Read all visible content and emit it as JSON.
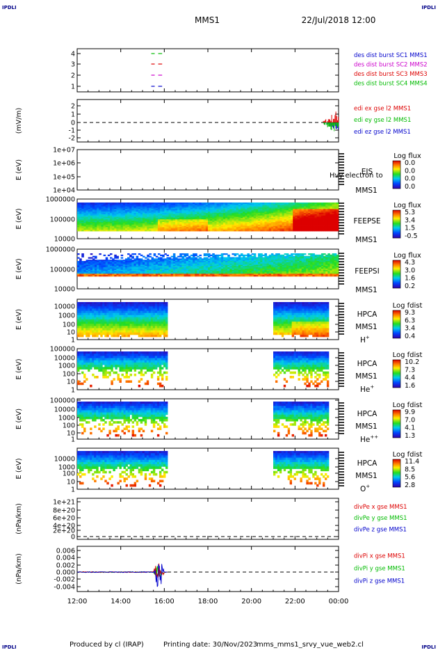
{
  "header": {
    "corner_tl": "IPDLI",
    "corner_tr": "IPDLI",
    "corner_bl": "IPDLI",
    "corner_br": "IPDLI",
    "mission": "MMS1",
    "datetime": "22/Jul/2018 12:00"
  },
  "footer": {
    "produced_by": "Produced by cl (IRAP)",
    "printing_date": "Printing date: 30/Nov/2023",
    "script_name": "mms_mms1_srvy_vue_web2.cl"
  },
  "colors": {
    "red": "#dd0000",
    "green": "#00bb00",
    "blue": "#0000cc",
    "magenta": "#cc00cc",
    "black": "#000000"
  },
  "chart_data": {
    "type": "heatmap",
    "x_axis": {
      "ticks": [
        "12:00",
        "14:00",
        "16:00",
        "18:00",
        "20:00",
        "22:00",
        "00:00"
      ],
      "range_hours": [
        12,
        24
      ]
    },
    "panels": [
      {
        "id": "burst",
        "type": "line",
        "ylabel": "",
        "ticks": [
          "4",
          "3",
          "2",
          "1"
        ],
        "legend": [
          {
            "label": "des dist burst SC1 MMS1",
            "color": "#0000cc"
          },
          {
            "label": "des dist burst SC2 MMS2",
            "color": "#cc00cc"
          },
          {
            "label": "des dist burst SC3 MMS3",
            "color": "#dd0000"
          },
          {
            "label": "des dist burst SC4 MMS4",
            "color": "#00bb00"
          }
        ],
        "segments": [
          {
            "level": 4,
            "color": "#00bb00",
            "t": [
              15.4,
              15.9
            ]
          },
          {
            "level": 3,
            "color": "#dd0000",
            "t": [
              15.4,
              15.9
            ]
          },
          {
            "level": 2,
            "color": "#cc00cc",
            "t": [
              15.4,
              15.9
            ]
          },
          {
            "level": 1,
            "color": "#0000cc",
            "t": [
              15.4,
              15.9
            ]
          }
        ]
      },
      {
        "id": "edi",
        "type": "line",
        "ylabel": "(mV/m)",
        "ticks": [
          "2",
          "1",
          "0",
          "-1",
          "-2"
        ],
        "legend": [
          {
            "label": "edi ex gse l2 MMS1",
            "color": "#dd0000"
          },
          {
            "label": "edi ey gse l2 MMS1",
            "color": "#00bb00"
          },
          {
            "label": "edi ez gse l2 MMS1",
            "color": "#0000cc"
          }
        ],
        "activity_start_hours": 23.3
      },
      {
        "id": "eis",
        "type": "heatmap",
        "ylabel": "E (eV)",
        "ticks": [
          "1e+07",
          "1e+06",
          "1e+05",
          "1e+04"
        ],
        "instrument": "EIS",
        "species": "Hvy electron to",
        "mission": "MMS1",
        "colorbar_title": "Log flux",
        "colorbar_ticks": [
          "0.0",
          "0.0",
          "0.0",
          "0.0"
        ]
      },
      {
        "id": "feepse",
        "type": "heatmap",
        "ylabel": "E (eV)",
        "ticks": [
          "1000000",
          "100000",
          "10000"
        ],
        "instrument": "FEEPSE",
        "mission": "MMS1",
        "colorbar_title": "Log flux",
        "colorbar_ticks": [
          "5.3",
          "3.4",
          "1.5",
          "-0.5"
        ]
      },
      {
        "id": "feepsi",
        "type": "heatmap",
        "ylabel": "E (eV)",
        "ticks": [
          "1000000",
          "100000",
          "10000"
        ],
        "instrument": "FEEPSI",
        "mission": "MMS1",
        "colorbar_title": "Log flux",
        "colorbar_ticks": [
          "4.3",
          "3.0",
          "1.6",
          "0.2"
        ]
      },
      {
        "id": "hpca_h",
        "type": "heatmap",
        "ylabel": "E (eV)",
        "ticks": [
          "10000",
          "1000",
          "100",
          "10",
          "1"
        ],
        "instrument": "HPCA",
        "mission": "MMS1",
        "species": "H",
        "species_sup": "+",
        "colorbar_title": "Log fdist",
        "colorbar_ticks": [
          "9.3",
          "6.3",
          "3.4",
          "0.4"
        ],
        "data_intervals_hours": [
          [
            12.0,
            16.15
          ],
          [
            21.0,
            23.55
          ]
        ]
      },
      {
        "id": "hpca_he1",
        "type": "heatmap",
        "ylabel": "E (eV)",
        "ticks": [
          "100000",
          "10000",
          "1000",
          "100",
          "10",
          "1"
        ],
        "instrument": "HPCA",
        "mission": "MMS1",
        "species": "He",
        "species_sup": "+",
        "colorbar_title": "Log fdist",
        "colorbar_ticks": [
          "10.2",
          "7.3",
          "4.4",
          "1.6"
        ],
        "data_intervals_hours": [
          [
            12.0,
            16.15
          ],
          [
            21.0,
            23.55
          ]
        ]
      },
      {
        "id": "hpca_he2",
        "type": "heatmap",
        "ylabel": "E (eV)",
        "ticks": [
          "100000",
          "10000",
          "1000",
          "100",
          "10",
          "1"
        ],
        "instrument": "HPCA",
        "mission": "MMS1",
        "species": "He",
        "species_sup": "++",
        "colorbar_title": "Log fdist",
        "colorbar_ticks": [
          "9.9",
          "7.0",
          "4.1",
          "1.3"
        ],
        "data_intervals_hours": [
          [
            12.0,
            16.15
          ],
          [
            21.0,
            23.55
          ]
        ]
      },
      {
        "id": "hpca_o",
        "type": "heatmap",
        "ylabel": "E (eV)",
        "ticks": [
          "10000",
          "1000",
          "100",
          "10",
          "1"
        ],
        "instrument": "HPCA",
        "mission": "MMS1",
        "species": "O",
        "species_sup": "+",
        "colorbar_title": "Log fdist",
        "colorbar_ticks": [
          "11.4",
          "8.5",
          "5.6",
          "2.8"
        ],
        "data_intervals_hours": [
          [
            12.0,
            16.15
          ],
          [
            21.0,
            23.55
          ]
        ]
      },
      {
        "id": "divpe",
        "type": "line",
        "ylabel": "(nPa/km)",
        "ticks": [
          "1e+21",
          "8e+20",
          "6e+20",
          "4e+20",
          "2e+20",
          "0"
        ],
        "legend": [
          {
            "label": "divPe x gse MMS1",
            "color": "#dd0000"
          },
          {
            "label": "divPe y gse MMS1",
            "color": "#00bb00"
          },
          {
            "label": "divPe z gse MMS1",
            "color": "#0000cc"
          }
        ]
      },
      {
        "id": "divpi",
        "type": "line",
        "ylabel": "(nPa/km)",
        "ticks": [
          "0.006",
          "0.004",
          "0.002",
          "0.000",
          "-0.002",
          "-0.004"
        ],
        "legend": [
          {
            "label": "divPi x gse MMS1",
            "color": "#dd0000"
          },
          {
            "label": "divPi y gse MMS1",
            "color": "#00bb00"
          },
          {
            "label": "divPi z gse MMS1",
            "color": "#0000cc"
          }
        ],
        "data_interval_hours": [
          12.0,
          16.15
        ],
        "spike_hours": 15.75,
        "spike_max": 0.0055,
        "spike_min": -0.0035
      }
    ]
  }
}
